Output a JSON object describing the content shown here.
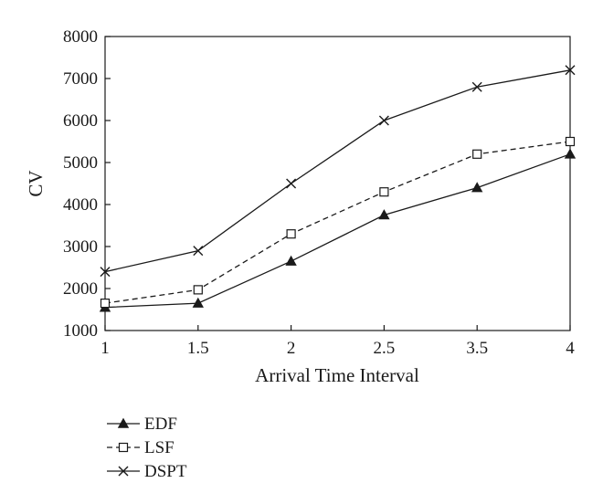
{
  "chart_data": {
    "type": "line",
    "categories": [
      "1",
      "1.5",
      "2",
      "2.5",
      "3.5",
      "4"
    ],
    "xlabel": "Arrival Time Interval",
    "ylabel": "CV",
    "ylim": [
      1000,
      8000
    ],
    "yticks": [
      "1000",
      "2000",
      "3000",
      "4000",
      "5000",
      "6000",
      "7000",
      "8000"
    ],
    "grid": false,
    "legend_position": "bottom-left",
    "series": [
      {
        "name": "EDF",
        "marker": "filled-triangle",
        "line": "solid",
        "color": "#1a1a1a",
        "values": [
          1550,
          1650,
          2650,
          3750,
          4400,
          5200
        ]
      },
      {
        "name": "LSF",
        "marker": "open-square",
        "line": "dashed",
        "color": "#1a1a1a",
        "values": [
          1650,
          1970,
          3300,
          4300,
          5200,
          5500
        ]
      },
      {
        "name": "DSPT",
        "marker": "cross",
        "line": "solid",
        "color": "#1a1a1a",
        "values": [
          2400,
          2900,
          4500,
          6000,
          6800,
          7200
        ]
      }
    ]
  }
}
